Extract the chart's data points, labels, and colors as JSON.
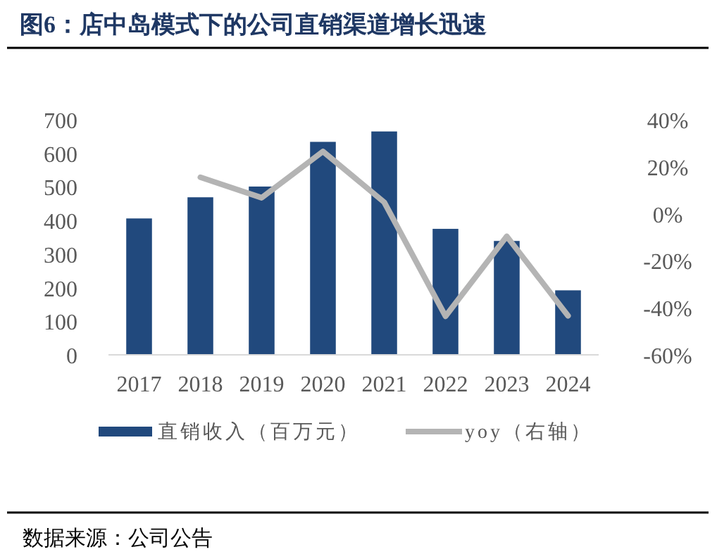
{
  "chart_data": {
    "type": "bar",
    "title": "图6：店中岛模式下的公司直销渠道增长迅速",
    "categories": [
      "2017",
      "2018",
      "2019",
      "2020",
      "2021",
      "2022",
      "2023",
      "2024"
    ],
    "series": [
      {
        "name": "直销收入（百万元）",
        "color": "#21497d",
        "values": [
          406,
          469,
          501,
          634,
          665,
          375,
          339,
          192
        ]
      },
      {
        "name": "yoy（右轴）",
        "type": "line",
        "axis": "y2",
        "color": "#b4b4b4",
        "values": [
          null,
          15.5,
          6.8,
          26.5,
          4.9,
          -43.6,
          -9.6,
          -43.4
        ]
      }
    ],
    "ylim": [
      0,
      700
    ],
    "yticks": [
      0,
      100,
      200,
      300,
      400,
      500,
      600,
      700
    ],
    "y2lim": [
      -60,
      40
    ],
    "y2ticks": [
      {
        "value": -60,
        "label": "-60%"
      },
      {
        "value": -40,
        "label": "-40%"
      },
      {
        "value": -20,
        "label": "-20%"
      },
      {
        "value": 0,
        "label": "0%"
      },
      {
        "value": 20,
        "label": "20%"
      },
      {
        "value": 40,
        "label": "40%"
      }
    ],
    "grid": false,
    "legend": "bottom",
    "marker": "none",
    "line_style": "solid",
    "annotations": [
      "数据来源：公司公告"
    ]
  }
}
